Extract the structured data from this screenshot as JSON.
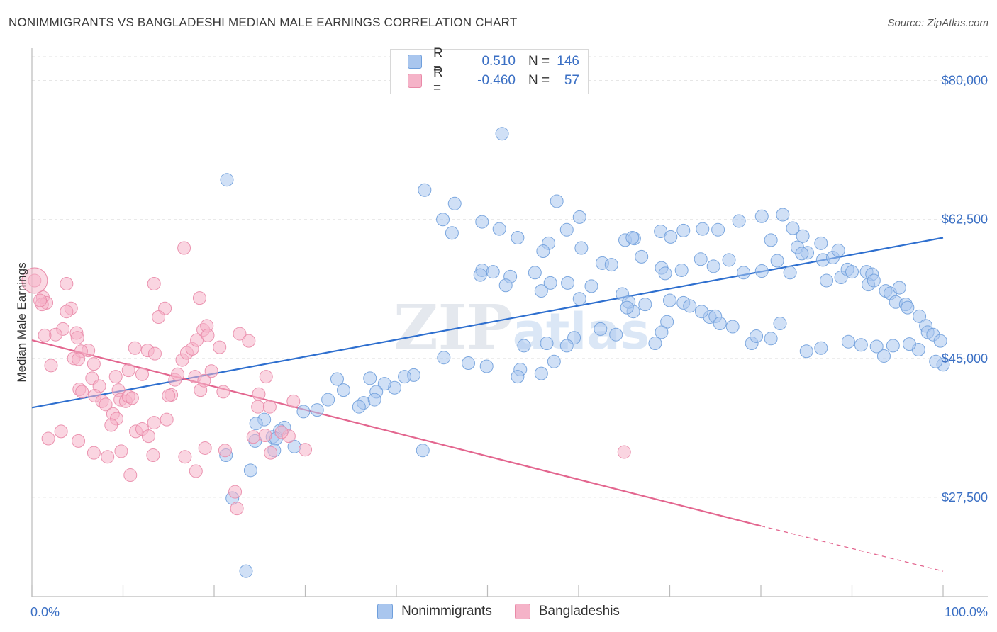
{
  "title": "NONIMMIGRANTS VS BANGLADESHI MEDIAN MALE EARNINGS CORRELATION CHART",
  "source": "Source: ZipAtlas.com",
  "watermark": "ZIPatlas",
  "legend": {
    "rows": [
      {
        "r_label": "R =",
        "r_value": "0.510",
        "n_label": "N =",
        "n_value": "146",
        "color": "#a9c6ee"
      },
      {
        "r_label": "R =",
        "r_value": "-0.460",
        "n_label": "N =",
        "n_value": "57",
        "color": "#f5b3c8"
      }
    ]
  },
  "bottom_legend": [
    {
      "label": "Nonimmigrants",
      "color": "#a9c6ee"
    },
    {
      "label": "Bangladeshis",
      "color": "#f5b3c8"
    }
  ],
  "chart_data": {
    "type": "scatter",
    "ylabel": "Median Male Earnings",
    "xlim": [
      0,
      100
    ],
    "ylim": [
      15000,
      83000
    ],
    "x_tick_labels": [
      "0.0%",
      "100.0%"
    ],
    "y_ticks": [
      {
        "value": 80000,
        "label": "$80,000"
      },
      {
        "value": 62500,
        "label": "$62,500"
      },
      {
        "value": 45000,
        "label": "$45,000"
      },
      {
        "value": 27500,
        "label": "$27,500"
      }
    ],
    "grid": true,
    "series": [
      {
        "name": "Nonimmigrants",
        "color": "#a9c6ee",
        "edge": "#6f9fdc",
        "trend_color": "#2e6fcf",
        "trend": [
          [
            0,
            38800
          ],
          [
            100,
            60200
          ]
        ],
        "points": [
          [
            21.4,
            67.5
          ],
          [
            51.6,
            73.3
          ],
          [
            43.1,
            66.2
          ],
          [
            46.4,
            64.5
          ],
          [
            57.6,
            64.8
          ],
          [
            45.1,
            62.5
          ],
          [
            49.4,
            62.2
          ],
          [
            60.1,
            62.8
          ],
          [
            46.1,
            60.8
          ],
          [
            51.3,
            61.3
          ],
          [
            58.7,
            61.2
          ],
          [
            53.3,
            60.2
          ],
          [
            56.7,
            59.5
          ],
          [
            56.1,
            58.5
          ],
          [
            60.3,
            58.9
          ],
          [
            65.1,
            59.9
          ],
          [
            66.1,
            60.1
          ],
          [
            65.9,
            60.2
          ],
          [
            69.0,
            61.0
          ],
          [
            71.5,
            61.1
          ],
          [
            70.1,
            60.3
          ],
          [
            73.6,
            61.3
          ],
          [
            75.3,
            61.2
          ],
          [
            77.6,
            62.3
          ],
          [
            80.1,
            62.9
          ],
          [
            82.4,
            63.1
          ],
          [
            81.1,
            59.9
          ],
          [
            83.5,
            61.4
          ],
          [
            84.6,
            60.4
          ],
          [
            84.0,
            59.0
          ],
          [
            86.6,
            59.5
          ],
          [
            85.1,
            58.3
          ],
          [
            86.8,
            57.4
          ],
          [
            87.9,
            57.7
          ],
          [
            88.5,
            58.6
          ],
          [
            49.4,
            56.1
          ],
          [
            49.2,
            55.5
          ],
          [
            50.6,
            55.9
          ],
          [
            55.2,
            55.8
          ],
          [
            52.5,
            55.3
          ],
          [
            52.0,
            54.2
          ],
          [
            58.8,
            54.5
          ],
          [
            62.6,
            57.0
          ],
          [
            63.6,
            56.8
          ],
          [
            66.9,
            57.8
          ],
          [
            69.1,
            56.4
          ],
          [
            69.5,
            55.7
          ],
          [
            71.3,
            56.1
          ],
          [
            73.4,
            57.5
          ],
          [
            74.8,
            56.6
          ],
          [
            76.5,
            57.4
          ],
          [
            78.1,
            55.8
          ],
          [
            80.1,
            56.0
          ],
          [
            81.8,
            57.3
          ],
          [
            83.2,
            55.8
          ],
          [
            84.5,
            58.2
          ],
          [
            87.2,
            54.8
          ],
          [
            88.8,
            55.2
          ],
          [
            89.5,
            56.2
          ],
          [
            90.0,
            55.9
          ],
          [
            91.6,
            55.9
          ],
          [
            92.2,
            55.6
          ],
          [
            91.8,
            54.3
          ],
          [
            92.4,
            54.8
          ],
          [
            93.7,
            53.5
          ],
          [
            94.2,
            53.2
          ],
          [
            95.2,
            53.9
          ],
          [
            94.8,
            52.1
          ],
          [
            95.9,
            51.8
          ],
          [
            96.1,
            51.4
          ],
          [
            97.4,
            50.3
          ],
          [
            98.1,
            49.1
          ],
          [
            98.3,
            48.3
          ],
          [
            98.9,
            48.0
          ],
          [
            99.7,
            47.2
          ],
          [
            100.0,
            44.2
          ],
          [
            99.2,
            44.6
          ],
          [
            97.3,
            46.1
          ],
          [
            96.3,
            46.8
          ],
          [
            94.5,
            46.6
          ],
          [
            93.5,
            45.3
          ],
          [
            92.7,
            46.5
          ],
          [
            91.0,
            46.7
          ],
          [
            89.6,
            47.1
          ],
          [
            86.6,
            46.3
          ],
          [
            85.0,
            45.9
          ],
          [
            81.1,
            47.5
          ],
          [
            79.0,
            46.9
          ],
          [
            74.4,
            50.2
          ],
          [
            69.7,
            49.6
          ],
          [
            69.1,
            48.3
          ],
          [
            68.4,
            46.9
          ],
          [
            66.0,
            50.9
          ],
          [
            61.4,
            54.1
          ],
          [
            56.9,
            54.5
          ],
          [
            55.9,
            53.5
          ],
          [
            60.1,
            52.5
          ],
          [
            64.8,
            53.1
          ],
          [
            65.5,
            52.1
          ],
          [
            65.3,
            51.4
          ],
          [
            67.3,
            51.8
          ],
          [
            70.0,
            52.3
          ],
          [
            71.5,
            52.0
          ],
          [
            72.2,
            51.6
          ],
          [
            73.5,
            50.9
          ],
          [
            75.0,
            50.3
          ],
          [
            75.5,
            49.4
          ],
          [
            76.9,
            49.0
          ],
          [
            79.5,
            47.8
          ],
          [
            82.1,
            49.4
          ],
          [
            62.4,
            48.7
          ],
          [
            64.1,
            48.0
          ],
          [
            59.5,
            47.6
          ],
          [
            58.7,
            46.6
          ],
          [
            56.5,
            46.9
          ],
          [
            54.0,
            46.6
          ],
          [
            57.3,
            44.6
          ],
          [
            55.9,
            43.1
          ],
          [
            53.6,
            43.6
          ],
          [
            53.3,
            42.7
          ],
          [
            49.9,
            44.0
          ],
          [
            47.9,
            44.4
          ],
          [
            45.2,
            45.1
          ],
          [
            41.9,
            42.9
          ],
          [
            40.9,
            42.7
          ],
          [
            39.8,
            41.3
          ],
          [
            38.7,
            41.8
          ],
          [
            37.1,
            42.5
          ],
          [
            33.5,
            42.4
          ],
          [
            37.8,
            40.8
          ],
          [
            36.4,
            39.4
          ],
          [
            37.6,
            39.8
          ],
          [
            35.9,
            38.9
          ],
          [
            34.2,
            41.0
          ],
          [
            32.5,
            39.8
          ],
          [
            31.3,
            38.5
          ],
          [
            29.8,
            38.3
          ],
          [
            27.7,
            36.3
          ],
          [
            27.2,
            35.9
          ],
          [
            25.5,
            37.3
          ],
          [
            24.6,
            36.8
          ],
          [
            24.5,
            34.6
          ],
          [
            26.4,
            35.1
          ],
          [
            26.8,
            34.9
          ],
          [
            28.8,
            33.9
          ],
          [
            26.6,
            33.4
          ],
          [
            21.3,
            32.8
          ],
          [
            24.0,
            30.9
          ],
          [
            23.5,
            18.2
          ],
          [
            22.0,
            27.4
          ],
          [
            42.9,
            33.4
          ]
        ]
      },
      {
        "name": "Bangladeshis",
        "color": "#f5b3c8",
        "edge": "#e98aa8",
        "trend_color": "#e3668f",
        "trend": [
          [
            0,
            47300
          ],
          [
            80,
            23900
          ]
        ],
        "trend_dash": [
          [
            80,
            23900
          ],
          [
            100,
            18200
          ]
        ],
        "points": [
          [
            0.3,
            54.8
          ],
          [
            1.2,
            52.7
          ],
          [
            1.6,
            52.0
          ],
          [
            1.1,
            51.8
          ],
          [
            0.9,
            52.3
          ],
          [
            3.8,
            54.4
          ],
          [
            4.3,
            51.3
          ],
          [
            3.8,
            50.9
          ],
          [
            3.4,
            48.7
          ],
          [
            2.6,
            48.0
          ],
          [
            1.4,
            47.9
          ],
          [
            4.9,
            48.2
          ],
          [
            5.0,
            47.6
          ],
          [
            6.2,
            46.0
          ],
          [
            5.4,
            45.9
          ],
          [
            4.6,
            45.0
          ],
          [
            5.1,
            44.9
          ],
          [
            6.8,
            44.3
          ],
          [
            2.1,
            44.1
          ],
          [
            6.6,
            42.5
          ],
          [
            7.4,
            41.5
          ],
          [
            5.2,
            41.1
          ],
          [
            5.5,
            40.8
          ],
          [
            6.9,
            40.3
          ],
          [
            7.7,
            39.6
          ],
          [
            8.1,
            39.2
          ],
          [
            9.5,
            41.0
          ],
          [
            9.7,
            39.8
          ],
          [
            10.3,
            39.6
          ],
          [
            10.6,
            40.2
          ],
          [
            11.0,
            40.0
          ],
          [
            8.9,
            38.0
          ],
          [
            9.3,
            37.4
          ],
          [
            8.7,
            36.6
          ],
          [
            11.4,
            35.8
          ],
          [
            12.1,
            36.1
          ],
          [
            12.8,
            35.2
          ],
          [
            13.4,
            36.9
          ],
          [
            14.8,
            37.3
          ],
          [
            15.3,
            40.4
          ],
          [
            15.7,
            42.3
          ],
          [
            16.0,
            43.0
          ],
          [
            16.5,
            44.8
          ],
          [
            17.0,
            45.7
          ],
          [
            17.6,
            46.2
          ],
          [
            18.1,
            47.3
          ],
          [
            18.8,
            48.6
          ],
          [
            19.2,
            49.1
          ],
          [
            19.3,
            47.9
          ],
          [
            17.9,
            42.7
          ],
          [
            18.5,
            41.0
          ],
          [
            19.7,
            43.4
          ],
          [
            24.9,
            40.5
          ],
          [
            24.8,
            38.9
          ],
          [
            26.1,
            38.9
          ],
          [
            25.7,
            42.7
          ],
          [
            20.6,
            46.4
          ],
          [
            22.8,
            48.1
          ],
          [
            23.8,
            47.2
          ],
          [
            11.3,
            46.3
          ],
          [
            12.7,
            46.0
          ],
          [
            13.5,
            45.6
          ],
          [
            12.1,
            43.0
          ],
          [
            10.6,
            43.5
          ],
          [
            9.2,
            42.7
          ],
          [
            14.6,
            51.3
          ],
          [
            13.9,
            50.2
          ],
          [
            16.7,
            58.9
          ],
          [
            13.4,
            54.4
          ],
          [
            18.4,
            52.6
          ],
          [
            18.9,
            42.2
          ],
          [
            15.0,
            40.3
          ],
          [
            28.7,
            39.6
          ],
          [
            21.0,
            40.8
          ],
          [
            13.3,
            32.8
          ],
          [
            8.3,
            32.6
          ],
          [
            18.0,
            30.8
          ],
          [
            10.8,
            30.3
          ],
          [
            9.8,
            33.3
          ],
          [
            22.3,
            28.2
          ],
          [
            26.2,
            33.1
          ],
          [
            28.2,
            35.2
          ],
          [
            21.2,
            33.4
          ],
          [
            19.0,
            33.7
          ],
          [
            25.6,
            35.3
          ],
          [
            27.4,
            35.7
          ],
          [
            24.3,
            35.1
          ],
          [
            30.0,
            33.5
          ],
          [
            22.5,
            26.1
          ],
          [
            6.8,
            33.1
          ],
          [
            5.1,
            34.6
          ],
          [
            1.8,
            34.9
          ],
          [
            3.2,
            35.8
          ],
          [
            16.8,
            32.6
          ],
          [
            65.0,
            33.2
          ]
        ]
      }
    ]
  }
}
